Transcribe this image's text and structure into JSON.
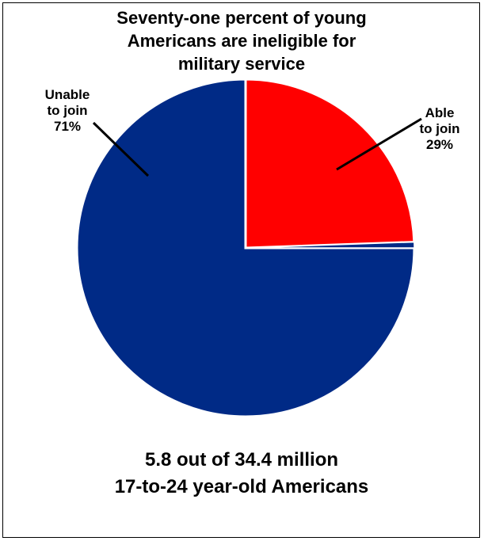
{
  "chart_data": {
    "type": "pie",
    "title": "Seventy-one percent of young\nAmericans are ineligible for\nmilitary service",
    "subtitle": "5.8 out of 34.4 million\n17-to-24 year-old Americans",
    "slices": [
      {
        "label": "Unable\nto join\n71%",
        "value": 71,
        "color": "#002a86"
      },
      {
        "label": "Able\nto join\n29%",
        "value": 29,
        "color": "#ff0000"
      }
    ]
  }
}
